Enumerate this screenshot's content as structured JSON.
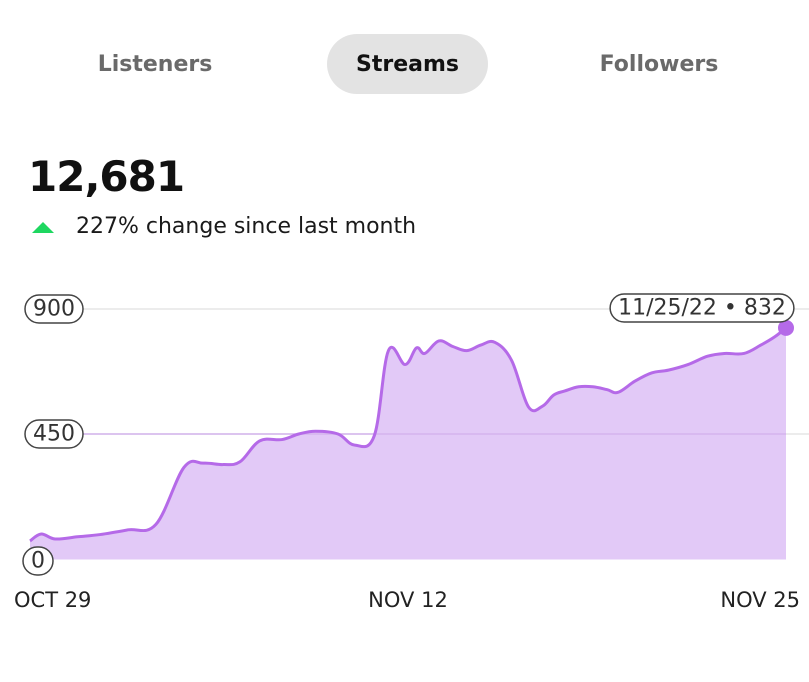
{
  "tabs": [
    {
      "label": "Listeners",
      "active": false
    },
    {
      "label": "Streams",
      "active": true
    },
    {
      "label": "Followers",
      "active": false
    }
  ],
  "summary": {
    "total": "12,681",
    "change_text": "227% change since last month",
    "change_direction": "up",
    "up_color": "#1ed760"
  },
  "tooltip": {
    "text": "11/25/22 • 832"
  },
  "chart_data": {
    "type": "area",
    "title": "",
    "xlabel": "",
    "ylabel": "",
    "ylim": [
      0,
      900
    ],
    "y_ticks": [
      0,
      450,
      900
    ],
    "x_tick_labels": [
      "OCT 29",
      "NOV 12",
      "NOV 25"
    ],
    "x_tick_days": [
      0,
      14,
      27
    ],
    "fill_color": "#e2c9f7",
    "line_color": "#b56ae8",
    "grid": true,
    "series": [
      {
        "x": [
          0,
          0.4,
          0.9,
          1.7,
          2.5,
          3.5,
          4.5,
          5.5,
          6.2,
          6.9,
          7.5,
          8.2,
          9,
          9.6,
          10.2,
          11,
          11.6,
          12.3,
          12.8,
          13.4,
          13.8,
          14.1,
          14.6,
          15.1,
          15.6,
          16.1,
          16.6,
          17.2,
          17.8,
          18.3,
          18.7,
          19.1,
          19.6,
          20.1,
          20.6,
          21,
          21.6,
          22.2,
          22.8,
          23.5,
          24.2,
          24.8,
          25.5,
          26.1,
          26.6,
          27
        ],
        "values": [
          65,
          90,
          72,
          80,
          88,
          105,
          125,
          330,
          345,
          340,
          350,
          425,
          430,
          450,
          460,
          450,
          410,
          445,
          750,
          700,
          760,
          740,
          785,
          765,
          750,
          770,
          780,
          715,
          548,
          550,
          590,
          605,
          620,
          620,
          610,
          600,
          640,
          670,
          680,
          700,
          730,
          740,
          740,
          770,
          800,
          832
        ]
      }
    ],
    "highlight_point": {
      "x": 27,
      "y": 832,
      "label": "11/25/22 • 832"
    }
  }
}
